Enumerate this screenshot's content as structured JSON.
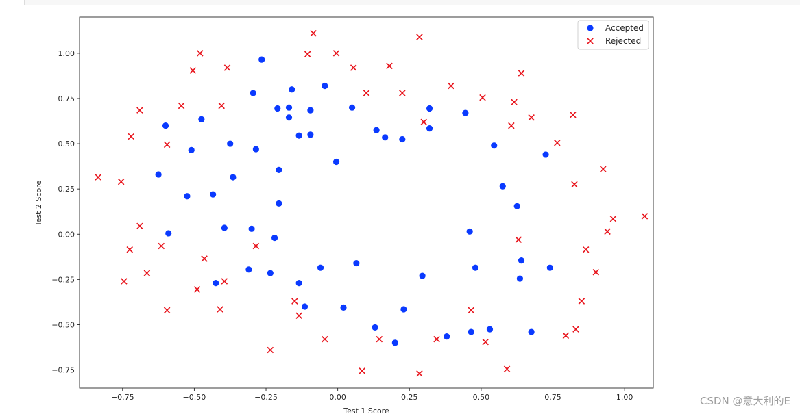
{
  "chart_data": {
    "type": "scatter",
    "title": "",
    "xlabel": "Test 1 Score",
    "ylabel": "Test 2 Score",
    "xlim": [
      -0.9,
      1.1
    ],
    "ylim": [
      -0.85,
      1.2
    ],
    "xticks": [
      -0.75,
      -0.5,
      -0.25,
      0.0,
      0.25,
      0.5,
      0.75,
      1.0
    ],
    "xtick_labels": [
      "−0.75",
      "−0.50",
      "−0.25",
      "0.00",
      "0.25",
      "0.50",
      "0.75",
      "1.00"
    ],
    "yticks": [
      -0.75,
      -0.5,
      -0.25,
      0.0,
      0.25,
      0.5,
      0.75,
      1.0
    ],
    "ytick_labels": [
      "−0.75",
      "−0.50",
      "−0.25",
      "0.00",
      "0.25",
      "0.50",
      "0.75",
      "1.00"
    ],
    "grid": false,
    "legend_position": "top-right",
    "series": [
      {
        "name": "Accepted",
        "marker": "circle",
        "color": "#0a3aff",
        "points": [
          [
            -0.265,
            0.965
          ],
          [
            -0.295,
            0.78
          ],
          [
            -0.16,
            0.8
          ],
          [
            -0.045,
            0.82
          ],
          [
            -0.21,
            0.695
          ],
          [
            -0.17,
            0.7
          ],
          [
            -0.095,
            0.685
          ],
          [
            0.05,
            0.7
          ],
          [
            -0.6,
            0.6
          ],
          [
            -0.475,
            0.635
          ],
          [
            -0.17,
            0.645
          ],
          [
            -0.135,
            0.545
          ],
          [
            -0.095,
            0.55
          ],
          [
            0.135,
            0.575
          ],
          [
            0.165,
            0.535
          ],
          [
            0.225,
            0.525
          ],
          [
            0.32,
            0.695
          ],
          [
            0.32,
            0.585
          ],
          [
            0.445,
            0.67
          ],
          [
            0.545,
            0.49
          ],
          [
            0.725,
            0.44
          ],
          [
            -0.51,
            0.465
          ],
          [
            -0.375,
            0.5
          ],
          [
            -0.285,
            0.47
          ],
          [
            -0.205,
            0.355
          ],
          [
            -0.005,
            0.4
          ],
          [
            -0.625,
            0.33
          ],
          [
            -0.365,
            0.315
          ],
          [
            -0.525,
            0.21
          ],
          [
            -0.435,
            0.22
          ],
          [
            -0.205,
            0.17
          ],
          [
            0.575,
            0.265
          ],
          [
            0.625,
            0.155
          ],
          [
            -0.59,
            0.005
          ],
          [
            -0.395,
            0.035
          ],
          [
            -0.3,
            0.03
          ],
          [
            -0.22,
            -0.02
          ],
          [
            0.46,
            0.015
          ],
          [
            -0.31,
            -0.195
          ],
          [
            -0.235,
            -0.215
          ],
          [
            -0.06,
            -0.185
          ],
          [
            0.065,
            -0.16
          ],
          [
            -0.425,
            -0.27
          ],
          [
            -0.135,
            -0.27
          ],
          [
            0.295,
            -0.23
          ],
          [
            0.48,
            -0.185
          ],
          [
            0.64,
            -0.145
          ],
          [
            0.74,
            -0.185
          ],
          [
            0.635,
            -0.245
          ],
          [
            -0.115,
            -0.4
          ],
          [
            0.02,
            -0.405
          ],
          [
            0.23,
            -0.415
          ],
          [
            0.13,
            -0.515
          ],
          [
            0.2,
            -0.6
          ],
          [
            0.38,
            -0.565
          ],
          [
            0.465,
            -0.54
          ],
          [
            0.53,
            -0.525
          ],
          [
            0.675,
            -0.54
          ]
        ]
      },
      {
        "name": "Rejected",
        "marker": "x",
        "color": "#e8141c",
        "points": [
          [
            -0.085,
            1.11
          ],
          [
            0.285,
            1.09
          ],
          [
            -0.48,
            1.0
          ],
          [
            -0.105,
            0.995
          ],
          [
            -0.005,
            1.0
          ],
          [
            -0.505,
            0.905
          ],
          [
            -0.385,
            0.92
          ],
          [
            0.055,
            0.92
          ],
          [
            0.18,
            0.93
          ],
          [
            0.64,
            0.89
          ],
          [
            0.395,
            0.82
          ],
          [
            0.1,
            0.78
          ],
          [
            0.225,
            0.78
          ],
          [
            0.505,
            0.755
          ],
          [
            0.615,
            0.73
          ],
          [
            -0.545,
            0.71
          ],
          [
            -0.405,
            0.71
          ],
          [
            -0.69,
            0.685
          ],
          [
            0.82,
            0.66
          ],
          [
            0.675,
            0.645
          ],
          [
            0.3,
            0.62
          ],
          [
            0.605,
            0.6
          ],
          [
            -0.72,
            0.54
          ],
          [
            -0.595,
            0.495
          ],
          [
            0.765,
            0.505
          ],
          [
            0.925,
            0.36
          ],
          [
            -0.835,
            0.315
          ],
          [
            -0.755,
            0.29
          ],
          [
            0.825,
            0.275
          ],
          [
            1.07,
            0.1
          ],
          [
            0.96,
            0.085
          ],
          [
            -0.69,
            0.045
          ],
          [
            0.94,
            0.015
          ],
          [
            0.63,
            -0.03
          ],
          [
            -0.615,
            -0.065
          ],
          [
            -0.285,
            -0.065
          ],
          [
            -0.725,
            -0.085
          ],
          [
            0.865,
            -0.085
          ],
          [
            -0.465,
            -0.135
          ],
          [
            -0.665,
            -0.215
          ],
          [
            0.9,
            -0.21
          ],
          [
            -0.745,
            -0.26
          ],
          [
            -0.395,
            -0.26
          ],
          [
            -0.49,
            -0.305
          ],
          [
            -0.15,
            -0.37
          ],
          [
            0.85,
            -0.37
          ],
          [
            -0.595,
            -0.42
          ],
          [
            -0.41,
            -0.415
          ],
          [
            0.465,
            -0.42
          ],
          [
            -0.135,
            -0.45
          ],
          [
            0.83,
            -0.525
          ],
          [
            -0.045,
            -0.58
          ],
          [
            0.145,
            -0.58
          ],
          [
            0.345,
            -0.58
          ],
          [
            0.515,
            -0.595
          ],
          [
            0.795,
            -0.56
          ],
          [
            -0.235,
            -0.64
          ],
          [
            0.59,
            -0.745
          ],
          [
            0.085,
            -0.755
          ],
          [
            0.285,
            -0.77
          ]
        ]
      }
    ]
  },
  "watermark": "CSDN @意大利的E"
}
